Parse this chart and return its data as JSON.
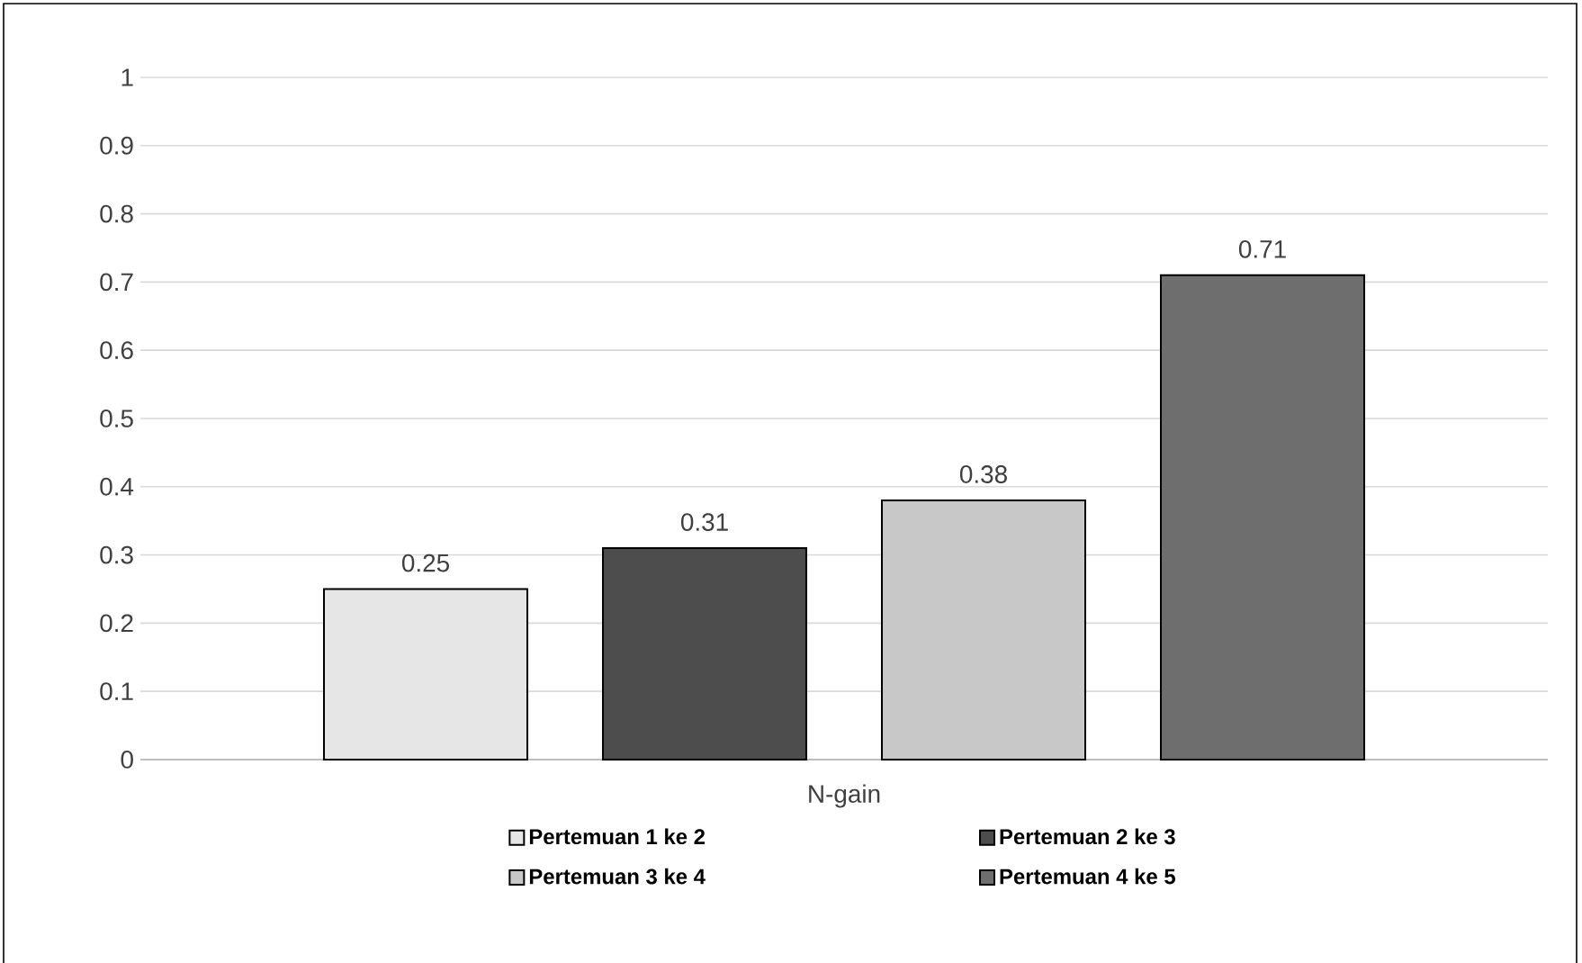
{
  "chart_data": {
    "type": "bar",
    "categories": [
      "N-gain"
    ],
    "series": [
      {
        "name": "Pertemuan 1 ke 2",
        "color": "#e6e6e6",
        "values": [
          0.25
        ]
      },
      {
        "name": "Pertemuan 2 ke 3",
        "color": "#4d4d4d",
        "values": [
          0.31
        ]
      },
      {
        "name": "Pertemuan 3 ke 4",
        "color": "#c8c8c8",
        "values": [
          0.38
        ]
      },
      {
        "name": "Pertemuan 4 ke 5",
        "color": "#6e6e6e",
        "values": [
          0.71
        ]
      }
    ],
    "ylim": [
      0,
      1
    ],
    "yticks": [
      0,
      0.1,
      0.2,
      0.3,
      0.4,
      0.5,
      0.6,
      0.7,
      0.8,
      0.9,
      1
    ],
    "grid": "y",
    "legend": "bottom",
    "data_labels": true
  }
}
